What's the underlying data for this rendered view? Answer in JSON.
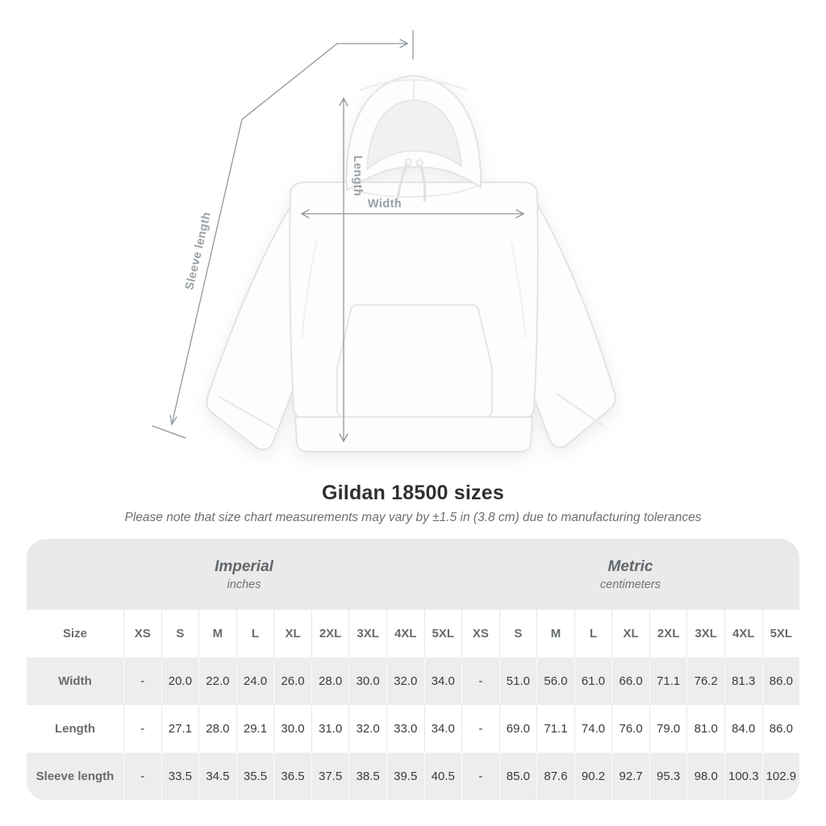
{
  "title": "Gildan 18500 sizes",
  "subtitle": "Please note that size chart measurements may vary by ±1.5 in (3.8 cm) due to manufacturing tolerances",
  "illustration": {
    "product": "white pullover hoodie, flat lay",
    "labels": {
      "sleeve_length": "Sleeve length",
      "length": "Length",
      "width": "Width"
    }
  },
  "chart_data": {
    "type": "table",
    "title": "Gildan 18500 sizes",
    "unit_groups": [
      {
        "label": "Imperial",
        "sublabel": "inches"
      },
      {
        "label": "Metric",
        "sublabel": "centimeters"
      }
    ],
    "size_header": "Size",
    "sizes": [
      "XS",
      "S",
      "M",
      "L",
      "XL",
      "2XL",
      "3XL",
      "4XL",
      "5XL"
    ],
    "rows": [
      {
        "label": "Width",
        "imperial": [
          "-",
          "20.0",
          "22.0",
          "24.0",
          "26.0",
          "28.0",
          "30.0",
          "32.0",
          "34.0"
        ],
        "metric": [
          "-",
          "51.0",
          "56.0",
          "61.0",
          "66.0",
          "71.1",
          "76.2",
          "81.3",
          "86.0"
        ]
      },
      {
        "label": "Length",
        "imperial": [
          "-",
          "27.1",
          "28.0",
          "29.1",
          "30.0",
          "31.0",
          "32.0",
          "33.0",
          "34.0"
        ],
        "metric": [
          "-",
          "69.0",
          "71.1",
          "74.0",
          "76.0",
          "79.0",
          "81.0",
          "84.0",
          "86.0"
        ]
      },
      {
        "label": "Sleeve length",
        "imperial": [
          "-",
          "33.5",
          "34.5",
          "35.5",
          "36.5",
          "37.5",
          "38.5",
          "39.5",
          "40.5"
        ],
        "metric": [
          "-",
          "85.0",
          "87.6",
          "90.2",
          "92.7",
          "95.3",
          "98.0",
          "100.3",
          "102.9"
        ]
      }
    ]
  },
  "colors": {
    "band_bg": "#eaeaea",
    "shaded_row_bg": "#ededed",
    "header_text": "#676c70",
    "value_text": "#3a3a3a",
    "annotation_line": "#8f969c",
    "annotation_label": "#9aa0a5"
  }
}
